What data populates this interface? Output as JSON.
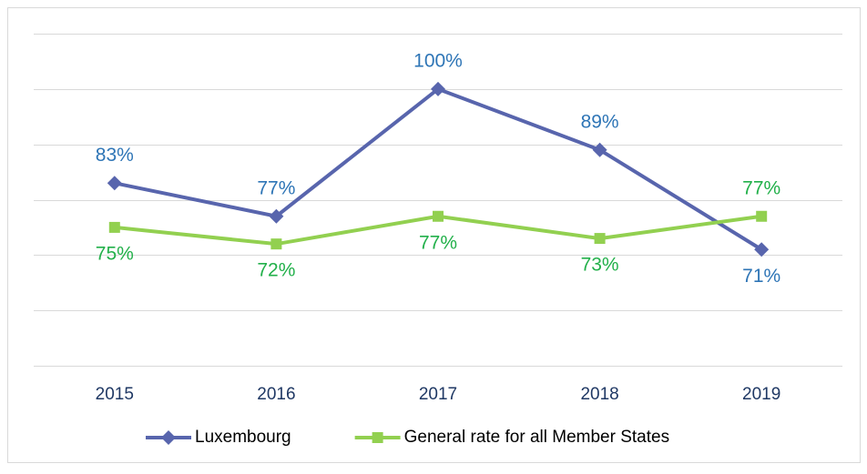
{
  "chart_data": {
    "type": "line",
    "categories": [
      "2015",
      "2016",
      "2017",
      "2018",
      "2019"
    ],
    "series": [
      {
        "name": "Luxembourg",
        "color": "#5865ad",
        "label_color": "#2e75b6",
        "marker": "diamond",
        "values": [
          83,
          77,
          100,
          89,
          71
        ],
        "value_labels": [
          "83%",
          "77%",
          "100%",
          "89%",
          "71%"
        ]
      },
      {
        "name": "General rate for all Member States",
        "color": "#92d050",
        "label_color": "#22b04a",
        "marker": "square",
        "values": [
          75,
          72,
          77,
          73,
          77
        ],
        "value_labels": [
          "75%",
          "72%",
          "77%",
          "73%",
          "77%"
        ]
      }
    ],
    "ylim": [
      50,
      110
    ],
    "yticks": [
      50,
      60,
      70,
      80,
      90,
      100,
      110
    ],
    "grid": true,
    "legend": "bottom"
  }
}
